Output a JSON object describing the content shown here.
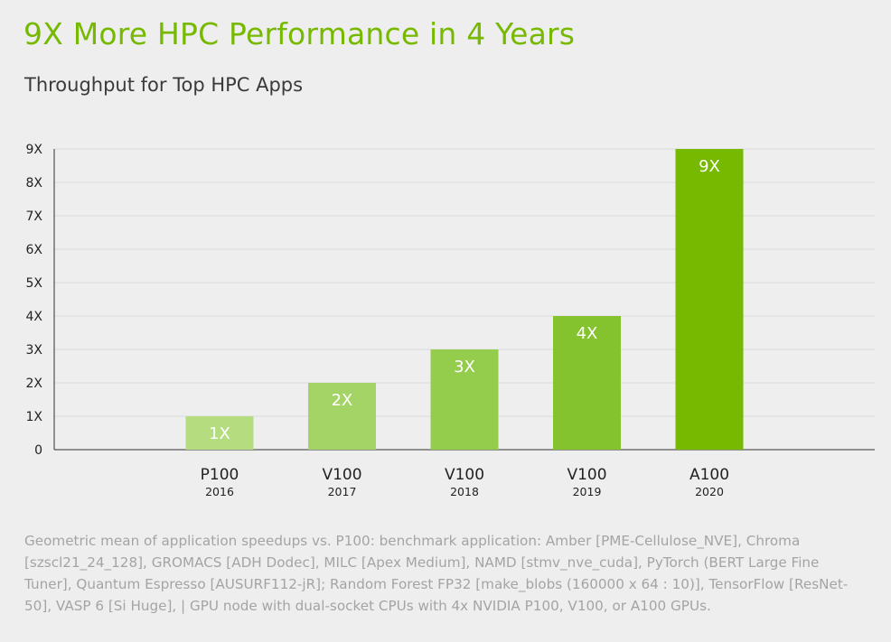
{
  "chart_data": {
    "type": "bar",
    "title": "9X More HPC Performance in 4 Years",
    "subtitle": "Throughput for Top HPC Apps",
    "categories": [
      "P100",
      "V100",
      "V100",
      "V100",
      "A100"
    ],
    "years": [
      "2016",
      "2017",
      "2018",
      "2019",
      "2020"
    ],
    "values": [
      1,
      2,
      3,
      4,
      9
    ],
    "data_labels": [
      "1X",
      "2X",
      "3X",
      "4X",
      "9X"
    ],
    "bar_colors": [
      "#b5dd7f",
      "#a3d465",
      "#94cc4b",
      "#84c22e",
      "#76b900"
    ],
    "ylim": [
      0,
      9
    ],
    "yticks": [
      0,
      1,
      2,
      3,
      4,
      5,
      6,
      7,
      8,
      9
    ],
    "ytick_labels": [
      "0",
      "1X",
      "2X",
      "3X",
      "4X",
      "5X",
      "6X",
      "7X",
      "8X",
      "9X"
    ],
    "grid": true,
    "xlabel": "",
    "ylabel": ""
  },
  "footnote": "Geometric mean of application speedups vs. P100: benchmark application: Amber [PME-Cellulose_NVE], Chroma [szscl21_24_128], GROMACS [ADH Dodec], MILC [Apex Medium], NAMD [stmv_nve_cuda], PyTorch (BERT Large Fine Tuner], Quantum Espresso [AUSURF112-jR]; Random Forest FP32 [make_blobs (160000 x 64 : 10)], TensorFlow [ResNet-50], VASP 6 [Si Huge], | GPU node with dual-socket CPUs with 4x NVIDIA P100, V100, or A100 GPUs.",
  "colors": {
    "accent": "#76b900",
    "grid": "#dadada",
    "axis": "#333333",
    "footnote": "#a4a4a4"
  }
}
